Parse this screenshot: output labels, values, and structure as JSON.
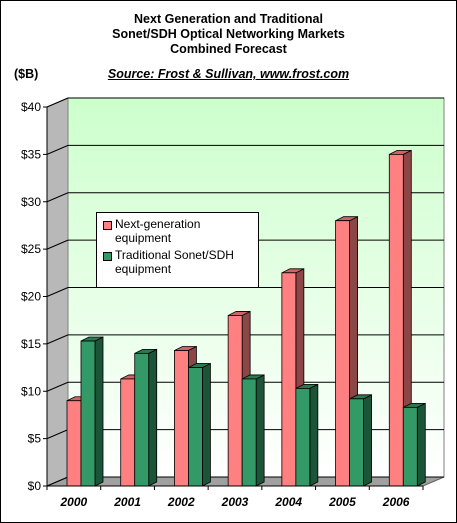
{
  "header": {
    "title_lines": [
      "Next Generation and Traditional",
      "Sonet/SDH Optical Networking Markets",
      "Combined Forecast"
    ],
    "source": "Source: Frost & Sullivan, www.frost.com",
    "unit": "($B)"
  },
  "colors": {
    "next_gen": "#ff8080",
    "traditional": "#339966",
    "plot_top": "#ccffcc",
    "plot_bottom": "#ffffff"
  },
  "chart_data": {
    "type": "bar",
    "title": "Next Generation and Traditional Sonet/SDH Optical Networking Markets Combined Forecast",
    "ylabel": "($B)",
    "categories": [
      "2000",
      "2001",
      "2002",
      "2003",
      "2004",
      "2005",
      "2006"
    ],
    "series": [
      {
        "name": "Next-generation equipment",
        "values": [
          9,
          11.3,
          14.3,
          18,
          22.5,
          28,
          35
        ]
      },
      {
        "name": "Traditional Sonet/SDH equipment",
        "values": [
          15.3,
          14,
          12.5,
          11.3,
          10.3,
          9.2,
          8.3
        ]
      }
    ],
    "ylim": [
      0,
      40
    ],
    "yticks": [
      "$0",
      "$5",
      "$10",
      "$15",
      "$20",
      "$25",
      "$30",
      "$35",
      "$40"
    ],
    "grid": true,
    "legend_position": "left-center"
  }
}
